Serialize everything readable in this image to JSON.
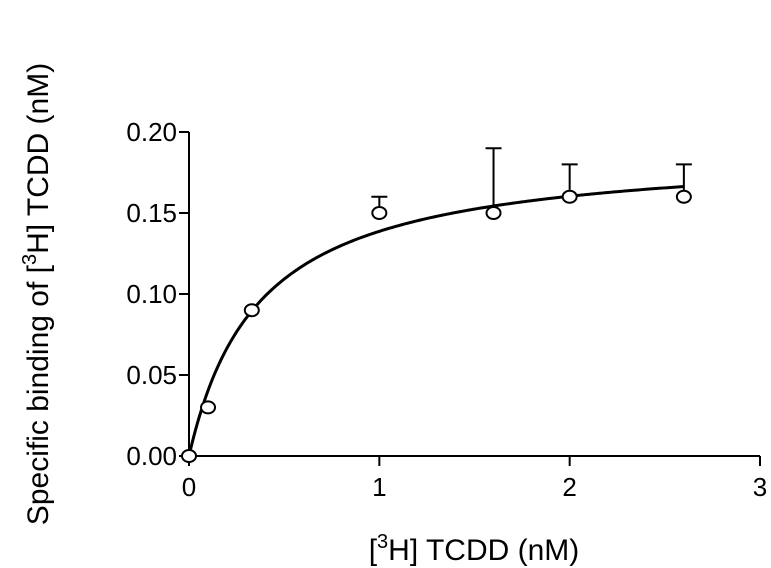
{
  "chart_data": {
    "type": "scatter",
    "title": "",
    "xlabel": {
      "prefix": "[",
      "sup": "3",
      "suffix": "H] TCDD (nM)"
    },
    "ylabel": {
      "prefix": "Specific binding of [",
      "sup": "3",
      "suffix": "H] TCDD (nM)"
    },
    "xlim": [
      0,
      3
    ],
    "ylim": [
      0,
      0.2
    ],
    "x_ticks": [
      "0",
      "1",
      "2",
      "3"
    ],
    "y_ticks": [
      "0.00",
      "0.05",
      "0.10",
      "0.15",
      "0.20"
    ],
    "grid": false,
    "legend": "none",
    "series": [
      {
        "marker": "open-circle",
        "x": [
          0,
          0.1,
          0.33,
          1.0,
          1.6,
          2.0,
          2.6
        ],
        "y": [
          0.0,
          0.03,
          0.09,
          0.15,
          0.15,
          0.16,
          0.16
        ],
        "error_upper": [
          null,
          null,
          null,
          0.16,
          0.19,
          0.18,
          0.18
        ]
      }
    ],
    "fit_curve": {
      "model": "one-site saturation binding",
      "equation": "y = Bmax * x / (Kd + x)",
      "Bmax": 0.19,
      "Kd": 0.37,
      "color": "#000000"
    }
  }
}
